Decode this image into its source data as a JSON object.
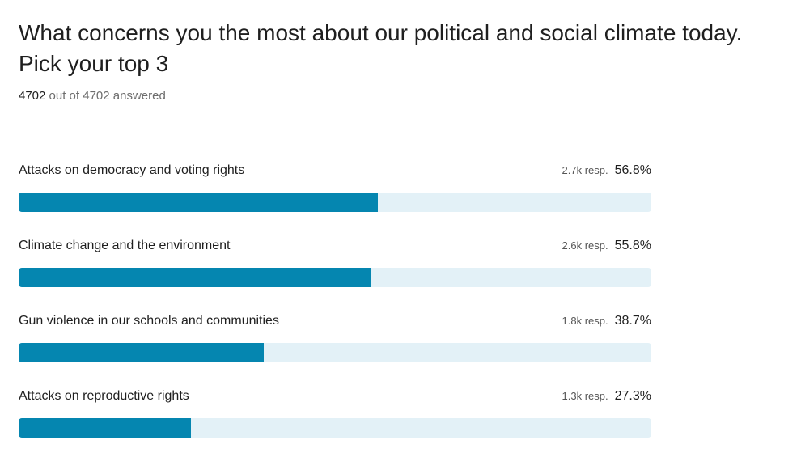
{
  "question": "What concerns you the most about our political and social climate today. Pick your top 3",
  "answered": {
    "count": "4702",
    "text": " out of 4702 answered"
  },
  "colors": {
    "bar_fill": "#0586b0",
    "bar_track": "#e3f1f7"
  },
  "chart_data": {
    "type": "bar",
    "orientation": "horizontal",
    "ylim": [
      0,
      100
    ],
    "categories": [
      "Attacks on democracy and voting rights",
      "Climate change and the environment",
      "Gun violence in our schools and communities",
      "Attacks on reproductive rights"
    ],
    "values": [
      56.8,
      55.8,
      38.7,
      27.3
    ],
    "responses": [
      "2.7k resp.",
      "2.6k resp.",
      "1.8k resp.",
      "1.3k resp."
    ],
    "percent_labels": [
      "56.8%",
      "55.8%",
      "38.7%",
      "27.3%"
    ]
  }
}
